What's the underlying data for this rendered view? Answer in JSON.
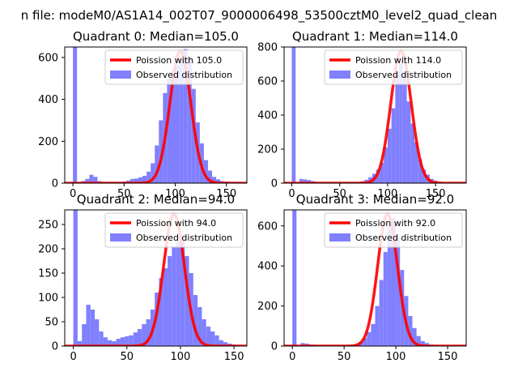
{
  "figure": {
    "suptitle": "n file: modeM0/AS1A14_002T07_9000006498_53500cztM0_level2_quad_clean"
  },
  "chart_data": [
    {
      "type": "bar",
      "title": "Quadrant 0: Median=105.0",
      "median": 105.0,
      "xlim": [
        -8,
        170
      ],
      "ylim": [
        0,
        650
      ],
      "xticks": [
        0,
        50,
        100,
        150
      ],
      "yticks": [
        0,
        200,
        400,
        600
      ],
      "legend": {
        "position": "top-right",
        "line_label": "Poission with 105.0",
        "bar_label": "Observed distribution"
      },
      "line_color": "#ff0000",
      "bar_color": "#8080ff",
      "bins": [
        0,
        4,
        8,
        12,
        16,
        20,
        24,
        28,
        32,
        36,
        40,
        44,
        48,
        52,
        56,
        60,
        64,
        68,
        72,
        76,
        80,
        84,
        88,
        92,
        96,
        100,
        104,
        108,
        112,
        116,
        120,
        124,
        128,
        132,
        136,
        140,
        144,
        148,
        152,
        156
      ],
      "counts": [
        650,
        5,
        10,
        20,
        40,
        30,
        10,
        5,
        3,
        3,
        3,
        5,
        8,
        12,
        20,
        22,
        28,
        35,
        55,
        95,
        180,
        300,
        430,
        500,
        540,
        560,
        600,
        640,
        600,
        450,
        290,
        190,
        110,
        60,
        30,
        18,
        10,
        8,
        5,
        4
      ]
    },
    {
      "type": "bar",
      "title": "Quadrant 1: Median=114.0",
      "median": 114.0,
      "xlim": [
        -8,
        182
      ],
      "ylim": [
        0,
        800
      ],
      "xticks": [
        0,
        50,
        100,
        150
      ],
      "yticks": [
        0,
        200,
        400,
        600,
        800
      ],
      "legend": {
        "position": "top-right",
        "line_label": "Poission with 114.0",
        "bar_label": "Observed distribution"
      },
      "line_color": "#ff0000",
      "bar_color": "#8080ff",
      "bins": [
        0,
        4,
        8,
        12,
        16,
        20,
        24,
        28,
        32,
        36,
        40,
        44,
        48,
        52,
        56,
        60,
        64,
        68,
        72,
        76,
        80,
        84,
        88,
        92,
        96,
        100,
        104,
        108,
        112,
        116,
        120,
        124,
        128,
        132,
        136,
        140,
        144,
        148,
        152,
        156,
        160,
        164,
        168
      ],
      "counts": [
        800,
        0,
        25,
        22,
        18,
        12,
        8,
        5,
        3,
        2,
        2,
        2,
        2,
        3,
        4,
        5,
        6,
        8,
        12,
        20,
        35,
        55,
        80,
        120,
        210,
        320,
        440,
        650,
        700,
        650,
        480,
        350,
        240,
        140,
        80,
        50,
        25,
        15,
        10,
        5,
        3,
        2,
        1
      ]
    },
    {
      "type": "bar",
      "title": "Quadrant 2: Median=94.0",
      "median": 94.0,
      "xlim": [
        -8,
        162
      ],
      "ylim": [
        0,
        280
      ],
      "xticks": [
        0,
        50,
        100,
        150
      ],
      "yticks": [
        0,
        50,
        100,
        150,
        200,
        250
      ],
      "legend": {
        "position": "top-right",
        "line_label": "Poission with 94.0",
        "bar_label": "Observed distribution"
      },
      "line_color": "#ff0000",
      "bar_color": "#8080ff",
      "bins": [
        0,
        4,
        8,
        12,
        16,
        20,
        24,
        28,
        32,
        36,
        40,
        44,
        48,
        52,
        56,
        60,
        64,
        68,
        72,
        76,
        80,
        84,
        88,
        92,
        96,
        100,
        104,
        108,
        112,
        116,
        120,
        124,
        128,
        132,
        136,
        140,
        144,
        148,
        152
      ],
      "counts": [
        280,
        10,
        45,
        85,
        75,
        55,
        30,
        18,
        12,
        10,
        15,
        18,
        20,
        22,
        28,
        35,
        45,
        55,
        75,
        110,
        140,
        160,
        185,
        205,
        215,
        225,
        185,
        150,
        105,
        80,
        55,
        40,
        30,
        22,
        12,
        8,
        5,
        3,
        2
      ]
    },
    {
      "type": "bar",
      "title": "Quadrant 3: Median=92.0",
      "median": 92.0,
      "xlim": [
        -8,
        168
      ],
      "ylim": [
        0,
        680
      ],
      "xticks": [
        0,
        50,
        100,
        150
      ],
      "yticks": [
        0,
        200,
        400,
        600
      ],
      "legend": {
        "position": "top-right",
        "line_label": "Poission with 92.0",
        "bar_label": "Observed distribution"
      },
      "line_color": "#ff0000",
      "bar_color": "#8080ff",
      "bins": [
        0,
        4,
        8,
        12,
        16,
        20,
        24,
        28,
        32,
        36,
        40,
        44,
        48,
        52,
        56,
        60,
        64,
        68,
        72,
        76,
        80,
        84,
        88,
        92,
        96,
        100,
        104,
        108,
        112,
        116,
        120,
        124,
        128,
        132,
        136,
        140,
        144,
        148,
        152
      ],
      "counts": [
        680,
        0,
        15,
        12,
        8,
        5,
        3,
        2,
        2,
        2,
        2,
        3,
        4,
        5,
        6,
        10,
        20,
        40,
        70,
        110,
        200,
        330,
        470,
        600,
        640,
        550,
        380,
        250,
        150,
        90,
        50,
        25,
        15,
        8,
        5,
        3,
        2,
        1,
        1
      ]
    }
  ]
}
